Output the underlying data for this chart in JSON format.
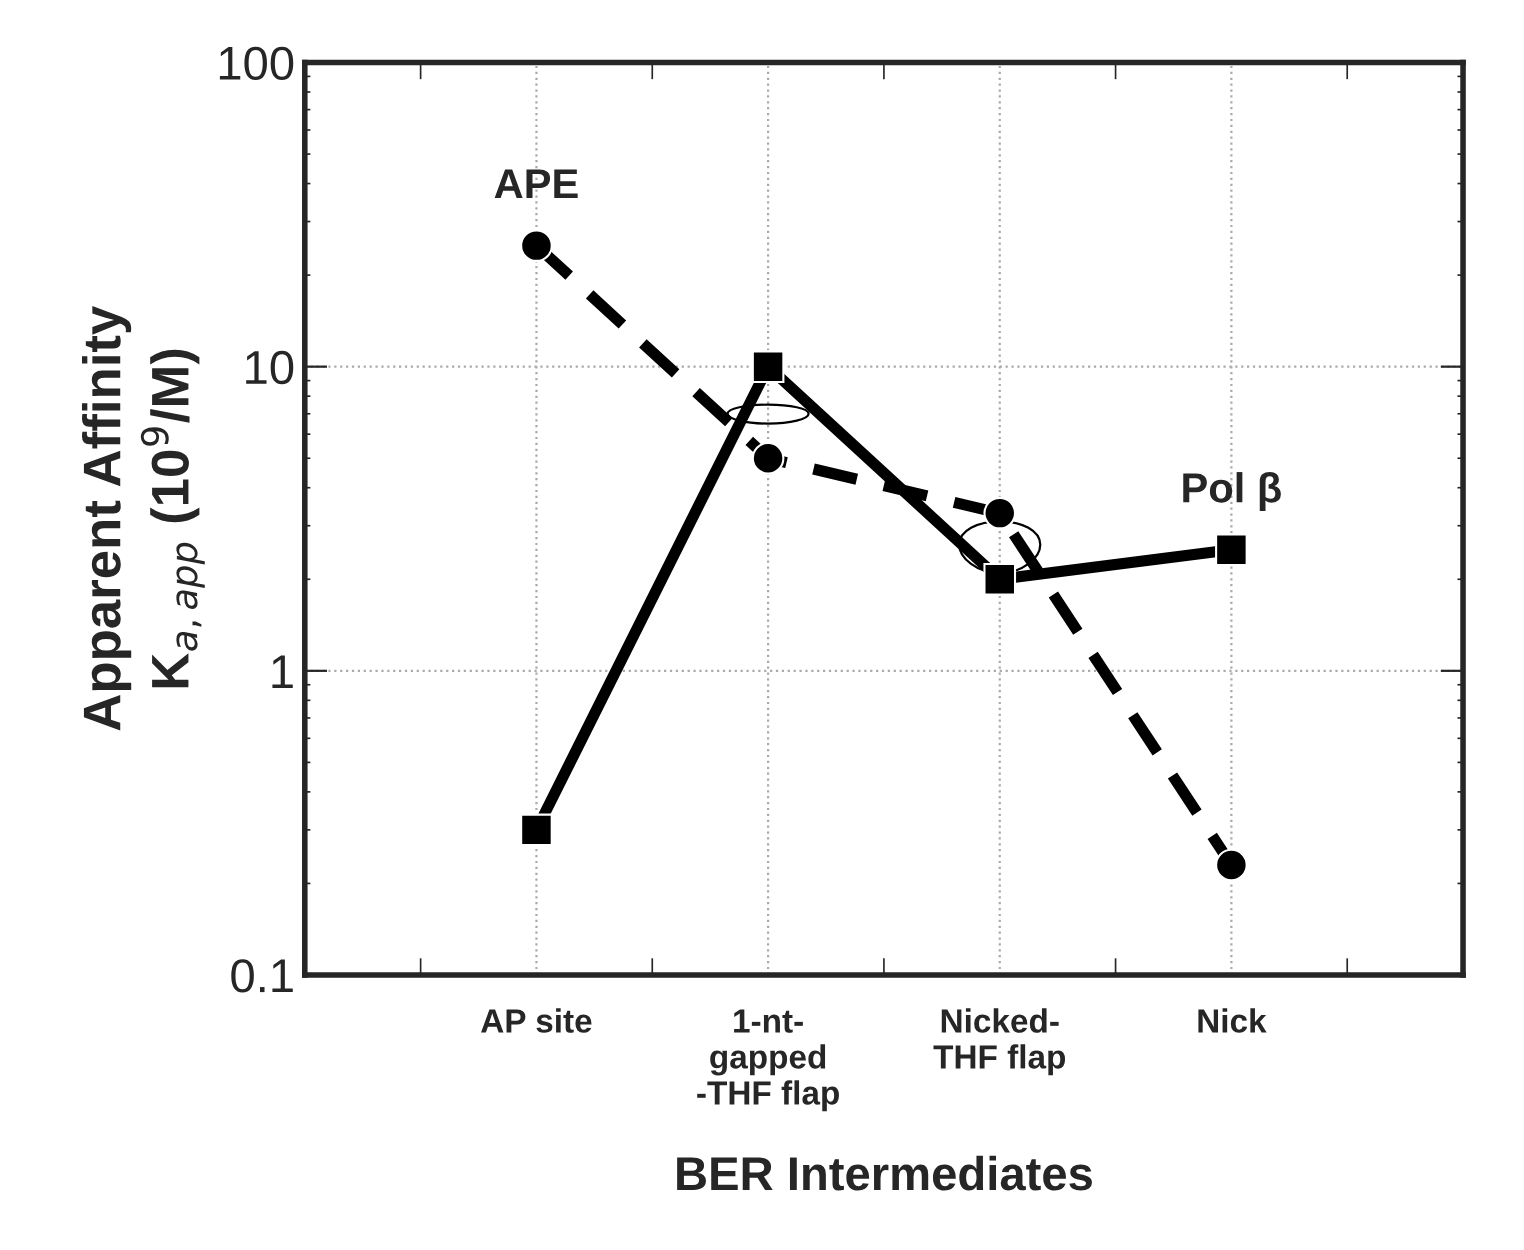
{
  "chart_data": {
    "type": "line",
    "xlabel": "BER Intermediates",
    "ylabel": "Apparent Affinity\nK$_{a,app}$ (10$^{9}$/M)",
    "categories": [
      "AP site",
      "1-nt-\ngapped\n-THF flap",
      "Nicked-\nTHF flap",
      "Nick"
    ],
    "series": [
      {
        "name": "APE",
        "color": "#000000",
        "values": [
          25,
          5,
          3.3,
          0.23
        ],
        "marker": "circle",
        "line_style": "dashed"
      },
      {
        "name": "Pol β",
        "color": "#000000",
        "values": [
          0.3,
          10,
          2,
          2.5
        ],
        "marker": "square",
        "line_style": "solid"
      }
    ],
    "log": "y",
    "ylim": [
      0.1,
      100
    ],
    "yticks": [
      0.1,
      1,
      10,
      100
    ],
    "grid": true,
    "legend": false
  }
}
